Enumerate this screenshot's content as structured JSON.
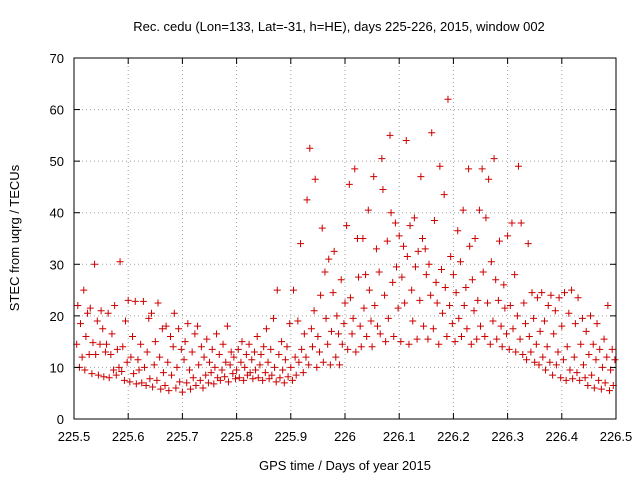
{
  "chart_data": {
    "type": "scatter",
    "title": "Rec. cedu (Lon=133, Lat=-31, h=HE), days 225-226, 2015, window 002",
    "xlabel": "GPS time / Days of year 2015",
    "ylabel": "STEC from uqrg / TECUs",
    "xlim": [
      225.5,
      226.5
    ],
    "ylim": [
      0,
      70
    ],
    "xticks": [
      225.5,
      225.6,
      225.7,
      225.8,
      225.9,
      226,
      226.1,
      226.2,
      226.3,
      226.4,
      226.5
    ],
    "xtick_labels": [
      "225.5",
      "225.6",
      "225.7",
      "225.8",
      "225.9",
      "226",
      "226.1",
      "226.2",
      "226.3",
      "226.4",
      "226.5"
    ],
    "yticks": [
      0,
      10,
      20,
      30,
      40,
      50,
      60,
      70
    ],
    "ytick_labels": [
      "0",
      "10",
      "20",
      "30",
      "40",
      "50",
      "60",
      "70"
    ],
    "grid": true,
    "marker": "+",
    "color": "#cc0000",
    "points": [
      [
        225.505,
        14.5
      ],
      [
        225.507,
        22.0
      ],
      [
        225.51,
        10.0
      ],
      [
        225.512,
        18.5
      ],
      [
        225.515,
        12.0
      ],
      [
        225.518,
        25.0
      ],
      [
        225.52,
        9.5
      ],
      [
        225.522,
        16.0
      ],
      [
        225.525,
        20.5
      ],
      [
        225.528,
        12.5
      ],
      [
        225.53,
        21.5
      ],
      [
        225.533,
        8.8
      ],
      [
        225.535,
        14.8
      ],
      [
        225.538,
        30.0
      ],
      [
        225.54,
        12.5
      ],
      [
        225.543,
        19.0
      ],
      [
        225.545,
        8.5
      ],
      [
        225.548,
        14.5
      ],
      [
        225.55,
        21.0
      ],
      [
        225.553,
        17.5
      ],
      [
        225.555,
        8.2
      ],
      [
        225.558,
        13.0
      ],
      [
        225.56,
        14.5
      ],
      [
        225.563,
        20.5
      ],
      [
        225.565,
        8.0
      ],
      [
        225.568,
        12.5
      ],
      [
        225.57,
        16.5
      ],
      [
        225.573,
        9.5
      ],
      [
        225.575,
        22.0
      ],
      [
        225.578,
        8.5
      ],
      [
        225.58,
        13.5
      ],
      [
        225.583,
        10.0
      ],
      [
        225.585,
        30.5
      ],
      [
        225.588,
        9.2
      ],
      [
        225.59,
        14.0
      ],
      [
        225.593,
        7.5
      ],
      [
        225.595,
        19.0
      ],
      [
        225.598,
        11.0
      ],
      [
        225.6,
        23.0
      ],
      [
        225.603,
        7.2
      ],
      [
        225.605,
        12.0
      ],
      [
        225.608,
        16.0
      ],
      [
        225.61,
        8.8
      ],
      [
        225.613,
        22.8
      ],
      [
        225.615,
        6.8
      ],
      [
        225.618,
        11.5
      ],
      [
        225.62,
        9.5
      ],
      [
        225.623,
        14.5
      ],
      [
        225.625,
        7.0
      ],
      [
        225.628,
        22.8
      ],
      [
        225.63,
        10.0
      ],
      [
        225.633,
        6.5
      ],
      [
        225.635,
        13.0
      ],
      [
        225.638,
        19.5
      ],
      [
        225.64,
        7.8
      ],
      [
        225.643,
        20.5
      ],
      [
        225.645,
        6.2
      ],
      [
        225.648,
        10.5
      ],
      [
        225.65,
        15.0
      ],
      [
        225.653,
        7.5
      ],
      [
        225.655,
        22.5
      ],
      [
        225.658,
        12.0
      ],
      [
        225.66,
        5.8
      ],
      [
        225.663,
        17.5
      ],
      [
        225.665,
        9.0
      ],
      [
        225.668,
        6.5
      ],
      [
        225.67,
        18.0
      ],
      [
        225.673,
        11.0
      ],
      [
        225.675,
        5.5
      ],
      [
        225.678,
        16.0
      ],
      [
        225.68,
        8.5
      ],
      [
        225.683,
        14.0
      ],
      [
        225.685,
        20.5
      ],
      [
        225.688,
        6.0
      ],
      [
        225.69,
        10.0
      ],
      [
        225.693,
        17.5
      ],
      [
        225.695,
        7.2
      ],
      [
        225.698,
        13.5
      ],
      [
        225.7,
        5.2
      ],
      [
        225.703,
        11.5
      ],
      [
        225.705,
        15.0
      ],
      [
        225.708,
        7.0
      ],
      [
        225.71,
        18.5
      ],
      [
        225.713,
        9.5
      ],
      [
        225.715,
        5.8
      ],
      [
        225.718,
        13.0
      ],
      [
        225.72,
        8.0
      ],
      [
        225.723,
        16.5
      ],
      [
        225.725,
        6.5
      ],
      [
        225.728,
        18.0
      ],
      [
        225.73,
        10.5
      ],
      [
        225.733,
        7.5
      ],
      [
        225.735,
        14.0
      ],
      [
        225.738,
        6.0
      ],
      [
        225.74,
        12.0
      ],
      [
        225.743,
        8.5
      ],
      [
        225.745,
        15.5
      ],
      [
        225.748,
        7.0
      ],
      [
        225.75,
        11.0
      ],
      [
        225.753,
        9.0
      ],
      [
        225.755,
        13.5
      ],
      [
        225.758,
        6.8
      ],
      [
        225.76,
        10.0
      ],
      [
        225.763,
        16.5
      ],
      [
        225.765,
        8.0
      ],
      [
        225.768,
        12.5
      ],
      [
        225.77,
        7.5
      ],
      [
        225.773,
        9.5
      ],
      [
        225.775,
        14.5
      ],
      [
        225.778,
        8.2
      ],
      [
        225.78,
        11.0
      ],
      [
        225.783,
        18.0
      ],
      [
        225.785,
        7.2
      ],
      [
        225.788,
        10.5
      ],
      [
        225.79,
        13.0
      ],
      [
        225.793,
        8.8
      ],
      [
        225.795,
        12.0
      ],
      [
        225.798,
        7.8
      ],
      [
        225.8,
        9.5
      ],
      [
        225.803,
        13.5
      ],
      [
        225.805,
        8.0
      ],
      [
        225.808,
        11.0
      ],
      [
        225.81,
        15.0
      ],
      [
        225.813,
        7.5
      ],
      [
        225.815,
        10.0
      ],
      [
        225.818,
        12.5
      ],
      [
        225.82,
        8.5
      ],
      [
        225.823,
        14.5
      ],
      [
        225.825,
        9.0
      ],
      [
        225.828,
        11.5
      ],
      [
        225.83,
        7.8
      ],
      [
        225.833,
        13.0
      ],
      [
        225.835,
        9.5
      ],
      [
        225.838,
        16.0
      ],
      [
        225.84,
        8.0
      ],
      [
        225.843,
        10.5
      ],
      [
        225.845,
        12.5
      ],
      [
        225.848,
        7.5
      ],
      [
        225.85,
        14.0
      ],
      [
        225.853,
        9.0
      ],
      [
        225.855,
        17.5
      ],
      [
        225.858,
        11.0
      ],
      [
        225.86,
        7.8
      ],
      [
        225.863,
        13.5
      ],
      [
        225.865,
        8.5
      ],
      [
        225.868,
        19.5
      ],
      [
        225.87,
        10.0
      ],
      [
        225.873,
        7.2
      ],
      [
        225.875,
        25.0
      ],
      [
        225.878,
        12.5
      ],
      [
        225.88,
        8.0
      ],
      [
        225.883,
        15.0
      ],
      [
        225.885,
        9.5
      ],
      [
        225.888,
        7.0
      ],
      [
        225.89,
        11.5
      ],
      [
        225.893,
        14.0
      ],
      [
        225.895,
        8.2
      ],
      [
        225.898,
        18.5
      ],
      [
        225.9,
        10.0
      ],
      [
        225.903,
        7.5
      ],
      [
        225.905,
        25.0
      ],
      [
        225.908,
        12.0
      ],
      [
        225.91,
        8.5
      ],
      [
        225.913,
        19.0
      ],
      [
        225.915,
        11.0
      ],
      [
        225.918,
        34.0
      ],
      [
        225.92,
        13.5
      ],
      [
        225.923,
        9.0
      ],
      [
        225.925,
        16.5
      ],
      [
        225.928,
        12.0
      ],
      [
        225.93,
        42.5
      ],
      [
        225.933,
        10.5
      ],
      [
        225.935,
        52.5
      ],
      [
        225.938,
        17.5
      ],
      [
        225.94,
        14.0
      ],
      [
        225.943,
        21.0
      ],
      [
        225.945,
        46.5
      ],
      [
        225.948,
        10.0
      ],
      [
        225.95,
        16.0
      ],
      [
        225.953,
        13.0
      ],
      [
        225.955,
        24.0
      ],
      [
        225.958,
        37.0
      ],
      [
        225.96,
        11.0
      ],
      [
        225.963,
        28.5
      ],
      [
        225.965,
        19.5
      ],
      [
        225.968,
        14.5
      ],
      [
        225.97,
        31.0
      ],
      [
        225.973,
        10.5
      ],
      [
        225.975,
        17.0
      ],
      [
        225.978,
        24.5
      ],
      [
        225.98,
        32.5
      ],
      [
        225.983,
        12.0
      ],
      [
        225.985,
        20.0
      ],
      [
        225.988,
        16.5
      ],
      [
        225.99,
        10.5
      ],
      [
        225.993,
        27.0
      ],
      [
        225.995,
        14.5
      ],
      [
        225.998,
        18.5
      ],
      [
        226.0,
        22.5
      ],
      [
        226.003,
        37.5
      ],
      [
        226.005,
        13.5
      ],
      [
        226.008,
        45.5
      ],
      [
        226.01,
        23.5
      ],
      [
        226.013,
        16.5
      ],
      [
        226.015,
        19.5
      ],
      [
        226.018,
        48.5
      ],
      [
        226.02,
        13.0
      ],
      [
        226.023,
        35.0
      ],
      [
        226.025,
        27.5
      ],
      [
        226.028,
        18.0
      ],
      [
        226.03,
        14.0
      ],
      [
        226.033,
        35.0
      ],
      [
        226.035,
        21.5
      ],
      [
        226.038,
        28.0
      ],
      [
        226.04,
        16.0
      ],
      [
        226.043,
        40.5
      ],
      [
        226.045,
        25.0
      ],
      [
        226.048,
        19.0
      ],
      [
        226.05,
        14.0
      ],
      [
        226.053,
        47.0
      ],
      [
        226.055,
        22.0
      ],
      [
        226.058,
        33.0
      ],
      [
        226.06,
        18.0
      ],
      [
        226.063,
        28.5
      ],
      [
        226.065,
        16.5
      ],
      [
        226.068,
        50.5
      ],
      [
        226.07,
        44.5
      ],
      [
        226.073,
        24.0
      ],
      [
        226.075,
        15.0
      ],
      [
        226.078,
        34.5
      ],
      [
        226.08,
        19.5
      ],
      [
        226.083,
        55.0
      ],
      [
        226.085,
        40.0
      ],
      [
        226.088,
        26.5
      ],
      [
        226.09,
        16.0
      ],
      [
        226.093,
        38.0
      ],
      [
        226.095,
        29.5
      ],
      [
        226.098,
        21.5
      ],
      [
        226.1,
        35.5
      ],
      [
        226.103,
        15.0
      ],
      [
        226.105,
        27.5
      ],
      [
        226.108,
        33.5
      ],
      [
        226.11,
        22.5
      ],
      [
        226.113,
        54.0
      ],
      [
        226.115,
        31.5
      ],
      [
        226.118,
        14.5
      ],
      [
        226.12,
        37.5
      ],
      [
        226.123,
        25.0
      ],
      [
        226.125,
        19.0
      ],
      [
        226.128,
        39.0
      ],
      [
        226.13,
        29.5
      ],
      [
        226.133,
        15.5
      ],
      [
        226.135,
        32.5
      ],
      [
        226.138,
        23.0
      ],
      [
        226.14,
        47.0
      ],
      [
        226.143,
        35.0
      ],
      [
        226.145,
        18.0
      ],
      [
        226.148,
        33.0
      ],
      [
        226.15,
        28.0
      ],
      [
        226.153,
        15.5
      ],
      [
        226.155,
        30.0
      ],
      [
        226.158,
        24.0
      ],
      [
        226.16,
        55.5
      ],
      [
        226.163,
        17.5
      ],
      [
        226.165,
        38.5
      ],
      [
        226.168,
        26.5
      ],
      [
        226.17,
        22.5
      ],
      [
        226.173,
        14.5
      ],
      [
        226.175,
        49.0
      ],
      [
        226.178,
        29.0
      ],
      [
        226.18,
        20.5
      ],
      [
        226.183,
        43.5
      ],
      [
        226.185,
        25.5
      ],
      [
        226.188,
        16.0
      ],
      [
        226.19,
        62.0
      ],
      [
        226.193,
        22.0
      ],
      [
        226.195,
        31.5
      ],
      [
        226.198,
        18.5
      ],
      [
        226.2,
        28.0
      ],
      [
        226.203,
        15.0
      ],
      [
        226.205,
        24.5
      ],
      [
        226.208,
        36.5
      ],
      [
        226.21,
        19.5
      ],
      [
        226.213,
        30.5
      ],
      [
        226.215,
        16.0
      ],
      [
        226.218,
        40.5
      ],
      [
        226.22,
        22.0
      ],
      [
        226.223,
        25.5
      ],
      [
        226.225,
        17.5
      ],
      [
        226.228,
        48.5
      ],
      [
        226.23,
        33.5
      ],
      [
        226.233,
        14.5
      ],
      [
        226.235,
        27.0
      ],
      [
        226.238,
        21.0
      ],
      [
        226.24,
        35.0
      ],
      [
        226.243,
        15.5
      ],
      [
        226.245,
        23.0
      ],
      [
        226.248,
        40.5
      ],
      [
        226.25,
        18.0
      ],
      [
        226.253,
        48.5
      ],
      [
        226.255,
        28.5
      ],
      [
        226.258,
        16.0
      ],
      [
        226.26,
        39.0
      ],
      [
        226.263,
        22.5
      ],
      [
        226.265,
        46.5
      ],
      [
        226.268,
        14.5
      ],
      [
        226.27,
        30.5
      ],
      [
        226.273,
        19.0
      ],
      [
        226.275,
        50.5
      ],
      [
        226.278,
        27.0
      ],
      [
        226.28,
        15.5
      ],
      [
        226.283,
        23.0
      ],
      [
        226.285,
        34.5
      ],
      [
        226.288,
        18.0
      ],
      [
        226.29,
        14.0
      ],
      [
        226.293,
        26.0
      ],
      [
        226.295,
        21.5
      ],
      [
        226.298,
        16.5
      ],
      [
        226.3,
        35.5
      ],
      [
        226.303,
        13.5
      ],
      [
        226.305,
        22.0
      ],
      [
        226.308,
        38.0
      ],
      [
        226.31,
        17.5
      ],
      [
        226.313,
        28.0
      ],
      [
        226.315,
        13.0
      ],
      [
        226.318,
        20.0
      ],
      [
        226.32,
        49.0
      ],
      [
        226.323,
        15.5
      ],
      [
        226.325,
        38.0
      ],
      [
        226.328,
        12.5
      ],
      [
        226.33,
        22.5
      ],
      [
        226.333,
        18.5
      ],
      [
        226.335,
        11.5
      ],
      [
        226.338,
        34.0
      ],
      [
        226.34,
        16.0
      ],
      [
        226.343,
        13.0
      ],
      [
        226.345,
        24.5
      ],
      [
        226.348,
        19.5
      ],
      [
        226.35,
        11.0
      ],
      [
        226.353,
        14.5
      ],
      [
        226.355,
        23.5
      ],
      [
        226.358,
        10.5
      ],
      [
        226.36,
        17.0
      ],
      [
        226.363,
        24.5
      ],
      [
        226.365,
        12.0
      ],
      [
        226.368,
        19.0
      ],
      [
        226.37,
        9.5
      ],
      [
        226.373,
        14.0
      ],
      [
        226.375,
        22.0
      ],
      [
        226.378,
        11.0
      ],
      [
        226.38,
        24.0
      ],
      [
        226.383,
        8.5
      ],
      [
        226.385,
        16.5
      ],
      [
        226.388,
        21.0
      ],
      [
        226.39,
        10.5
      ],
      [
        226.393,
        13.0
      ],
      [
        226.395,
        23.5
      ],
      [
        226.398,
        8.0
      ],
      [
        226.4,
        18.0
      ],
      [
        226.403,
        11.5
      ],
      [
        226.405,
        24.5
      ],
      [
        226.408,
        7.5
      ],
      [
        226.41,
        14.0
      ],
      [
        226.413,
        20.5
      ],
      [
        226.415,
        9.5
      ],
      [
        226.418,
        25.0
      ],
      [
        226.42,
        7.8
      ],
      [
        226.423,
        12.0
      ],
      [
        226.425,
        18.5
      ],
      [
        226.428,
        9.0
      ],
      [
        226.43,
        23.5
      ],
      [
        226.433,
        7.5
      ],
      [
        226.435,
        14.5
      ],
      [
        226.438,
        19.5
      ],
      [
        226.44,
        10.5
      ],
      [
        226.443,
        8.0
      ],
      [
        226.445,
        17.0
      ],
      [
        226.448,
        6.5
      ],
      [
        226.45,
        12.5
      ],
      [
        226.453,
        20.0
      ],
      [
        226.455,
        8.5
      ],
      [
        226.458,
        14.5
      ],
      [
        226.46,
        6.0
      ],
      [
        226.463,
        11.5
      ],
      [
        226.465,
        18.5
      ],
      [
        226.468,
        7.5
      ],
      [
        226.47,
        13.5
      ],
      [
        226.473,
        5.8
      ],
      [
        226.475,
        10.0
      ],
      [
        226.478,
        15.5
      ],
      [
        226.48,
        7.0
      ],
      [
        226.483,
        12.0
      ],
      [
        226.485,
        22.0
      ],
      [
        226.488,
        5.5
      ],
      [
        226.49,
        9.5
      ],
      [
        226.493,
        13.5
      ],
      [
        226.495,
        6.5
      ],
      [
        226.498,
        11.5
      ]
    ]
  }
}
